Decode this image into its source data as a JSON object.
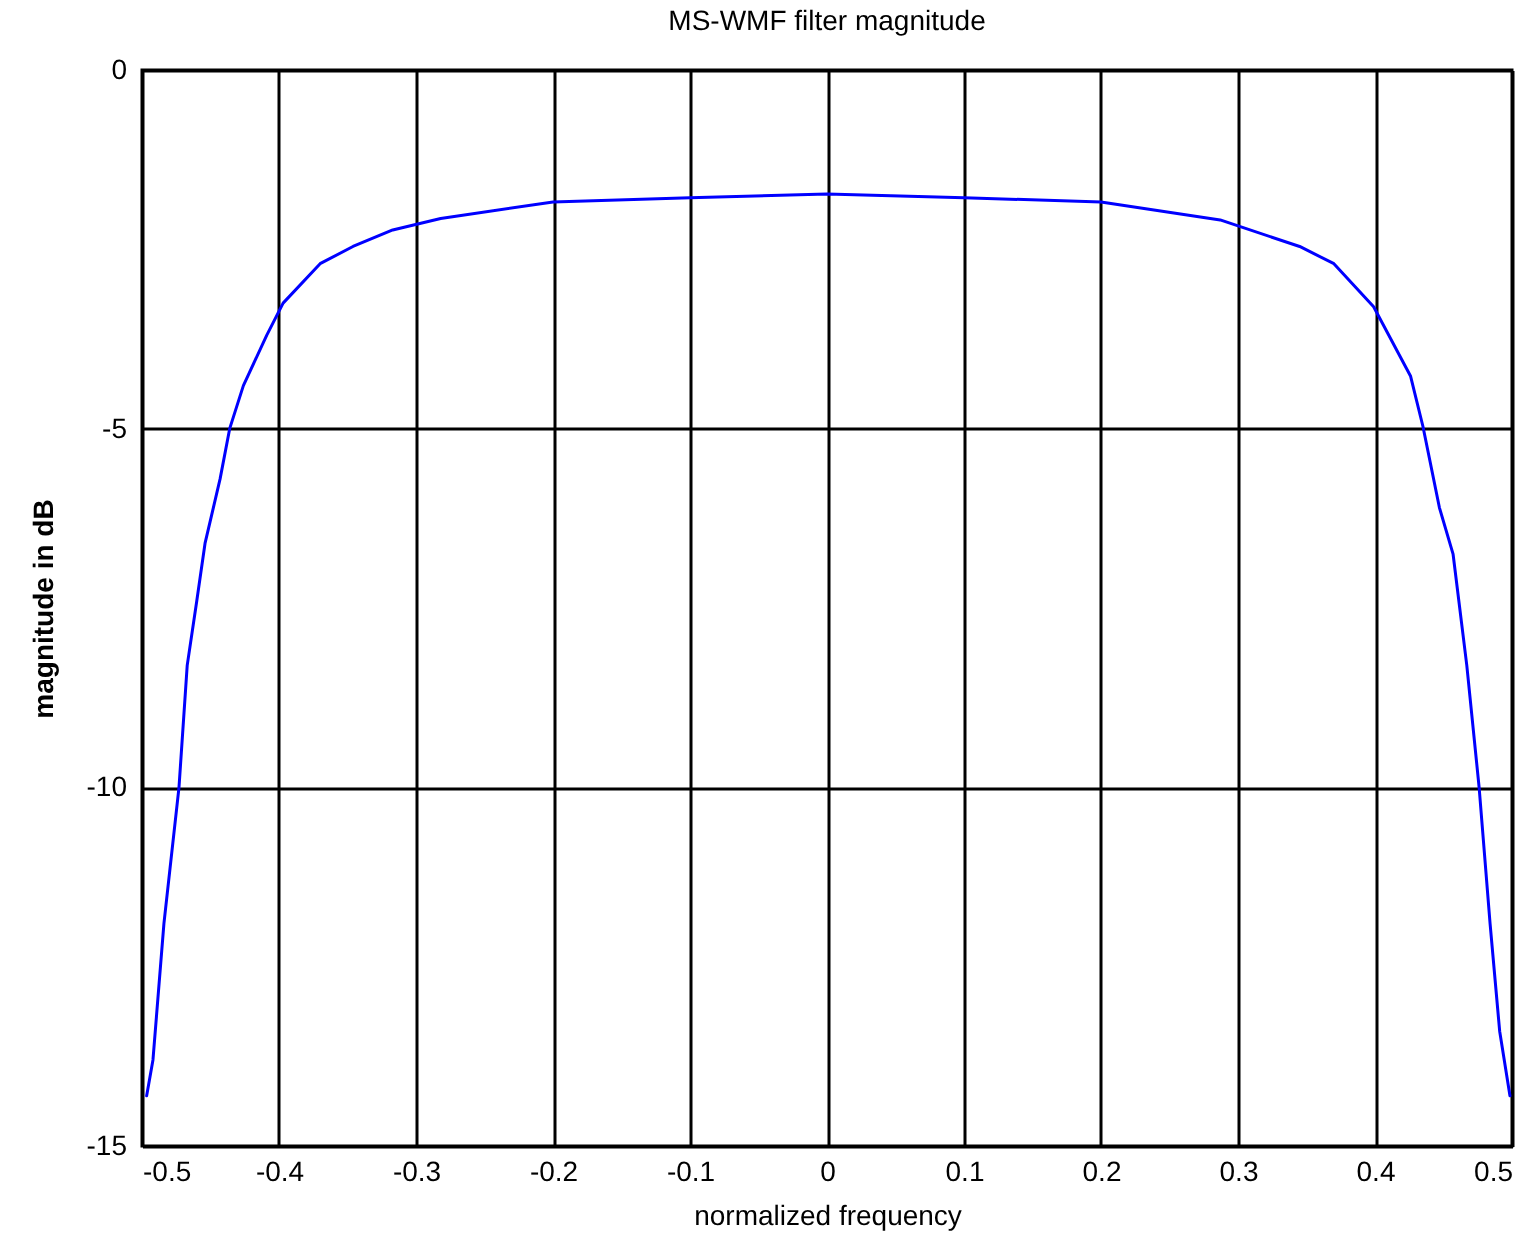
{
  "chart_data": {
    "type": "line",
    "title": "MS-WMF filter magnitude",
    "xlabel": "normalized frequency",
    "ylabel": "magnitude in dB",
    "x": [
      -0.4966,
      -0.492,
      -0.484,
      -0.473,
      -0.467,
      -0.46,
      -0.454,
      -0.443,
      -0.436,
      -0.426,
      -0.409,
      -0.397,
      -0.37,
      -0.346,
      -0.317,
      -0.282,
      -0.2,
      -0.1,
      0,
      0.1,
      0.2,
      0.287,
      0.345,
      0.37,
      0.399,
      0.426,
      0.435,
      0.447,
      0.457,
      0.467,
      0.476,
      0.484,
      0.491,
      0.4985
    ],
    "series": [
      {
        "color": "#0000ff",
        "values": [
          -14.3,
          -13.8,
          -11.9,
          -10.0,
          -8.3,
          -7.4,
          -6.6,
          -5.7,
          -5.0,
          -4.4,
          -3.7,
          -3.25,
          -2.7,
          -2.46,
          -2.23,
          -2.07,
          -1.84,
          -1.78,
          -1.73,
          -1.78,
          -1.84,
          -2.09,
          -2.46,
          -2.7,
          -3.3,
          -4.27,
          -4.97,
          -6.1,
          -6.75,
          -8.3,
          -10.0,
          -11.9,
          -13.4,
          -14.3
        ]
      }
    ],
    "xlim": [
      -0.5,
      0.5
    ],
    "xticks": [
      -0.5,
      -0.4,
      -0.3,
      -0.2,
      -0.1,
      0,
      0.1,
      0.2,
      0.3,
      0.4,
      0.5
    ],
    "ylim": [
      -15,
      0
    ],
    "yticks": [
      -15,
      -10,
      -5,
      0
    ],
    "grid": true,
    "legend": false,
    "marker": "none",
    "line_style": "solid"
  }
}
